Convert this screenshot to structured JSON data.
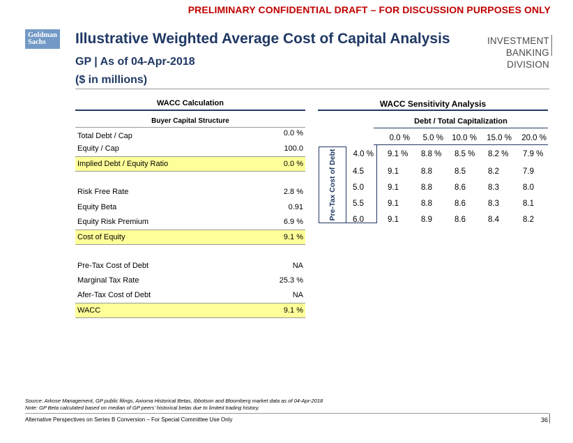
{
  "banner": "PRELIMINARY CONFIDENTIAL DRAFT – FOR DISCUSSION PURPOSES ONLY",
  "logo": {
    "line1": "Goldman",
    "line2": "Sachs"
  },
  "header": {
    "title": "Illustrative Weighted Average Cost of Capital Analysis",
    "subtitle": "GP | As of 04-Apr-2018",
    "units": "($ in millions)",
    "division_line1": "INVESTMENT BANKING",
    "division_line2": "DIVISION"
  },
  "wacc_calc": {
    "title": "WACC Calculation",
    "section_header": "Buyer Capital Structure",
    "rows": [
      {
        "label": "Total Debt / Cap",
        "value": "0.0 %"
      },
      {
        "label": "Equity / Cap",
        "value": "100.0"
      },
      {
        "label": "Implied Debt / Equity Ratio",
        "value": "0.0 %"
      },
      {
        "label": "Risk Free Rate",
        "value": "2.8 %"
      },
      {
        "label": "Equity Beta",
        "value": "0.91"
      },
      {
        "label": "Equity Risk Premium",
        "value": "6.9 %"
      },
      {
        "label": "Cost of Equity",
        "value": "9.1 %"
      },
      {
        "label": "Pre-Tax Cost of Debt",
        "value": "NA"
      },
      {
        "label": "Marginal Tax Rate",
        "value": "25.3 %"
      },
      {
        "label": "Afer-Tax Cost of Debt",
        "value": "NA"
      },
      {
        "label": "WACC",
        "value": "9.1 %"
      }
    ]
  },
  "sensitivity": {
    "title": "WACC Sensitivity Analysis",
    "col_header": "Debt / Total Capitalization",
    "row_header": "Pre-Tax Cost of Debt",
    "columns": [
      "0.0 %",
      "5.0 %",
      "10.0 %",
      "15.0 %",
      "20.0 %"
    ],
    "rows": [
      {
        "label": "4.0 %",
        "values": [
          "9.1 %",
          "8.8 %",
          "8.5 %",
          "8.2 %",
          "7.9 %"
        ]
      },
      {
        "label": "4.5",
        "values": [
          "9.1",
          "8.8",
          "8.5",
          "8.2",
          "7.9"
        ]
      },
      {
        "label": "5.0",
        "values": [
          "9.1",
          "8.8",
          "8.6",
          "8.3",
          "8.0"
        ]
      },
      {
        "label": "5.5",
        "values": [
          "9.1",
          "8.8",
          "8.6",
          "8.3",
          "8.1"
        ]
      },
      {
        "label": "6.0",
        "values": [
          "9.1",
          "8.9",
          "8.6",
          "8.4",
          "8.2"
        ]
      }
    ]
  },
  "footnotes": {
    "source": "Source: Arkose Management, GP public filings, Axioma Historical Betas, Ibbotson and Bloomberg market data as of 04-Apr-2018",
    "note": "Note: GP Beta calculated based on median of GP peers’ historical betas due to limited trading history."
  },
  "footer": {
    "left": "Alternative Perspectives on Series B Conversion – For Special Committee Use Only",
    "page": "36"
  }
}
